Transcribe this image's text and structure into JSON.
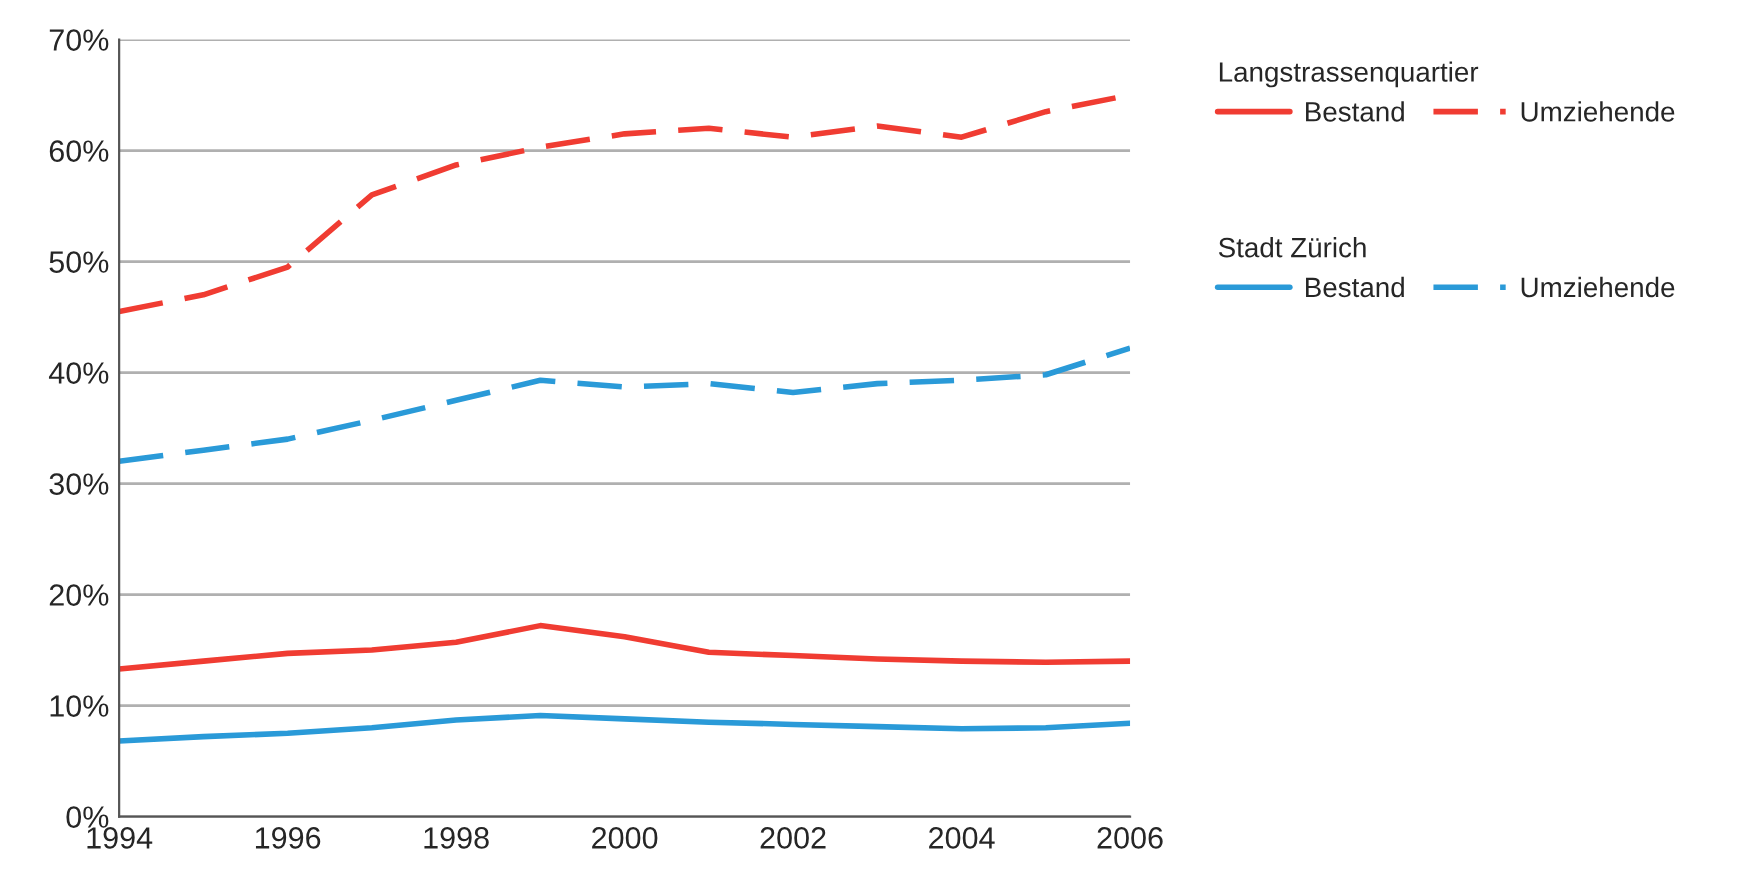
{
  "chart_data": {
    "type": "line",
    "x": [
      1994,
      1995,
      1996,
      1997,
      1998,
      1999,
      2000,
      2001,
      2002,
      2003,
      2004,
      2005,
      2006
    ],
    "series": [
      {
        "name": "Bestand",
        "color": "#f03c32",
        "line_style": "solid",
        "values": [
          13.3,
          14.0,
          14.7,
          15.0,
          15.7,
          17.2,
          16.2,
          14.8,
          14.5,
          14.2,
          14.0,
          13.9,
          14.0
        ]
      },
      {
        "name": "Umziehende",
        "color": "#f03c32",
        "line_style": "dashed",
        "values": [
          45.5,
          47.0,
          49.5,
          56.0,
          58.7,
          60.3,
          61.5,
          62.0,
          61.2,
          62.2,
          61.2,
          63.5,
          65.0
        ]
      },
      {
        "name": "Bestand",
        "color": "#2a9ad8",
        "line_style": "solid",
        "values": [
          6.8,
          7.2,
          7.5,
          8.0,
          8.7,
          9.1,
          8.8,
          8.5,
          8.3,
          8.1,
          7.9,
          8.0,
          8.4
        ]
      },
      {
        "name": "Umziehende",
        "color": "#2a9ad8",
        "line_style": "dashed",
        "values": [
          32.0,
          33.0,
          34.0,
          35.7,
          37.5,
          39.3,
          38.7,
          39.0,
          38.2,
          39.0,
          39.3,
          39.8,
          42.2
        ]
      }
    ],
    "annotations": [
      "Langstrassenquartier",
      "Stadt Zürich"
    ],
    "xlim": [
      1994,
      2006
    ],
    "xticks": [
      1994,
      1996,
      1998,
      2000,
      2002,
      2004,
      2006
    ],
    "ylim": [
      0,
      70
    ],
    "yticks": [
      {
        "value": 0,
        "label": "0%"
      },
      {
        "value": 10,
        "label": "10%"
      },
      {
        "value": 20,
        "label": "20%"
      },
      {
        "value": 30,
        "label": "30%"
      },
      {
        "value": 40,
        "label": "40%"
      },
      {
        "value": 50,
        "label": "50%"
      },
      {
        "value": 60,
        "label": "60%"
      },
      {
        "value": 70,
        "label": "70%"
      }
    ],
    "grid": "y",
    "legend": "right",
    "marker": "none"
  }
}
